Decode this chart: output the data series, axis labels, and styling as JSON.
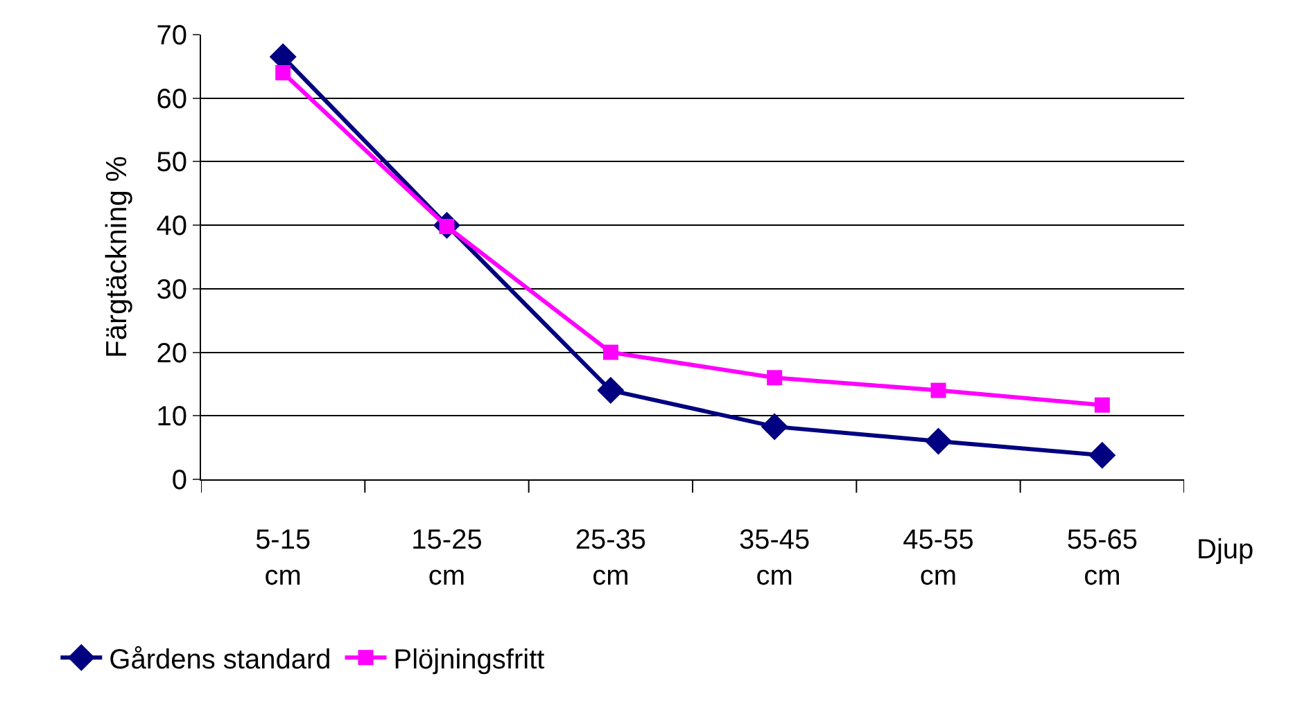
{
  "chart_data": {
    "type": "line",
    "ylabel": "Färgtäckning %",
    "xlabel": "Djup",
    "categories": [
      "5-15 cm",
      "15-25 cm",
      "25-35 cm",
      "35-45 cm",
      "45-55 cm",
      "55-65 cm"
    ],
    "series": [
      {
        "name": "Gårdens standard",
        "color": "#000080",
        "marker": "diamond",
        "values": [
          66.5,
          40,
          14,
          8.3,
          6,
          3.8
        ]
      },
      {
        "name": "Plöjningsfritt",
        "color": "#ff00ff",
        "marker": "square",
        "values": [
          64,
          39.8,
          20,
          16,
          14,
          11.7
        ]
      }
    ],
    "ylim": [
      0,
      70
    ],
    "yticks": [
      0,
      10,
      20,
      30,
      40,
      50,
      60,
      70
    ],
    "grid": "y",
    "legend": "bottom left",
    "line_style": "solid"
  }
}
